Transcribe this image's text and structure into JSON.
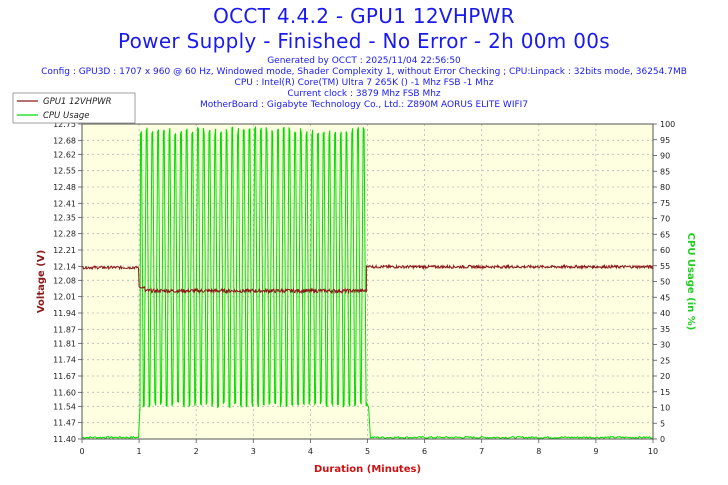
{
  "title": "OCCT 4.4.2 - GPU1 12VHPWR",
  "subtitle": "Power Supply - Finished - No Error - 2h 00m 00s",
  "info_lines": [
    "Generated by OCCT : 2025/11/04 22:56:50",
    "Config : GPU3D : 1707 x 960 @ 60 Hz, Windowed mode, Shader Complexity 1, without Error Checking ; CPU:Linpack : 32bits mode, 36254.7MB",
    "CPU : Intel(R) Core(TM) Ultra 7 265K () -1 Mhz FSB -1 Mhz",
    "Current clock : 3879 Mhz FSB  Mhz",
    "MotherBoard : Gigabyte Technology Co., Ltd.: Z890M AORUS ELITE WIFI7"
  ],
  "colors": {
    "voltage": "#8b1a1a",
    "cpu": "#00dd00",
    "plot_bg": "#fefee0",
    "title": "#1a1aee",
    "axis_label_x": "#cc1111",
    "axis_label_y2": "#22cc22"
  },
  "chart_data": {
    "type": "line",
    "xlabel": "Duration (Minutes)",
    "ylabel": "Voltage (V)",
    "y2label": "CPU Usage (in %)",
    "xlim": [
      0,
      10
    ],
    "ylim": [
      11.4,
      12.75
    ],
    "y2lim": [
      0,
      100
    ],
    "x_ticks": [
      "0",
      "1",
      "2",
      "3",
      "4",
      "5",
      "6",
      "7",
      "8",
      "9",
      "10"
    ],
    "y_ticks": [
      "11.40",
      "11.47",
      "11.54",
      "11.60",
      "11.67",
      "11.74",
      "11.81",
      "11.87",
      "11.94",
      "12.01",
      "12.08",
      "12.14",
      "12.21",
      "12.28",
      "12.35",
      "12.41",
      "12.48",
      "12.55",
      "12.62",
      "12.68",
      "12.75"
    ],
    "y2_ticks": [
      "0",
      "5",
      "10",
      "15",
      "20",
      "25",
      "30",
      "35",
      "40",
      "45",
      "50",
      "55",
      "60",
      "65",
      "70",
      "75",
      "80",
      "85",
      "90",
      "95",
      "100"
    ],
    "legend_position": "top-left",
    "grid": true,
    "series": [
      {
        "name": "GPU1 12VHPWR",
        "axis": "left",
        "segments": [
          {
            "x_start": 0,
            "x_end": 1.0,
            "value": 12.135,
            "jitter": 0.006
          },
          {
            "x_start": 1.0,
            "x_end": 1.1,
            "value": 12.05,
            "jitter": 0.004
          },
          {
            "x_start": 1.1,
            "x_end": 4.98,
            "value": 12.035,
            "jitter": 0.008
          },
          {
            "x_start": 4.98,
            "x_end": 5.08,
            "value": 12.14,
            "jitter": 0.004
          },
          {
            "x_start": 5.08,
            "x_end": 10.0,
            "value": 12.138,
            "jitter": 0.006
          }
        ]
      },
      {
        "name": "CPU Usage",
        "axis": "right",
        "idle_value": 0.5,
        "load_start": 1.0,
        "load_end": 5.0,
        "load_high": 99,
        "load_low": 10,
        "cycles": 40
      }
    ]
  }
}
